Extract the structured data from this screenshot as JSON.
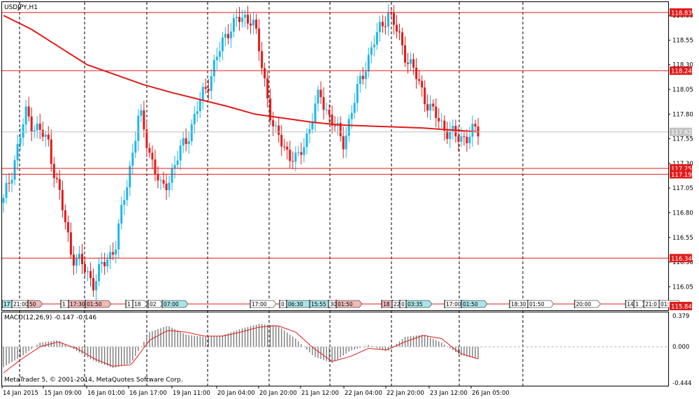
{
  "symbol_label": "USDJPY,H1",
  "indicator_label": "MACD(12,26,9) -0.147 -0.146",
  "copyright": "MetaTrader 5, © 2001-2014, MetaQuotes Software Corp.",
  "colors": {
    "bull": "#1fb6e8",
    "bear": "#e01b1b",
    "level_line": "#e01b1b",
    "ma_line": "#e01b1b",
    "macd_hist": "#7a7a7a",
    "signal": "#e01b1b",
    "grid": "#000000"
  },
  "chart_data": [
    {
      "type": "candlestick",
      "price_axis": {
        "min": 115.84,
        "max": 118.9,
        "ticks": [
          "118.80",
          "118.55",
          "118.30",
          "118.05",
          "117.80",
          "117.55",
          "117.30",
          "117.05",
          "116.80",
          "116.55",
          "116.30",
          "116.05"
        ]
      },
      "time_axis_labels": [
        "14 Jan 2015",
        "15 Jan 09:00",
        "16 Jan 01:00",
        "16 Jan 17:00",
        "19 Jan 11:00",
        "20 Jan 04:00",
        "20 Jan 20:00",
        "21 Jan 12:00",
        "22 Jan 04:00",
        "22 Jan 20:00",
        "23 Jan 12:00",
        "26 Jan 05:00"
      ],
      "levels": [
        {
          "price": 118.83,
          "label": "118.83"
        },
        {
          "price": 118.24,
          "label": "118.24"
        },
        {
          "price": 117.25,
          "label": "117.25"
        },
        {
          "price": 117.19,
          "label": "117.19"
        },
        {
          "price": 116.34,
          "label": "116.34"
        }
      ],
      "current_price": {
        "price": 117.62,
        "label": "117.62"
      },
      "bottom_label": {
        "price": 115.84,
        "label": "115.84"
      },
      "moving_average_path": [
        118.8,
        118.66,
        118.48,
        118.3,
        118.2,
        118.1,
        118.02,
        117.95,
        117.88,
        117.8,
        117.76,
        117.72,
        117.69,
        117.68,
        117.67,
        117.66,
        117.64,
        117.62
      ],
      "price_path": [
        116.9,
        117.8,
        117.5,
        116.4,
        116.1,
        116.5,
        117.8,
        117.0,
        117.5,
        118.1,
        118.7,
        118.8,
        117.6,
        117.3,
        118.0,
        117.5,
        118.3,
        118.85,
        118.3,
        117.8,
        117.55,
        117.62
      ],
      "alerts": [
        {
          "text": "17",
          "style": "teal"
        },
        {
          "text": "21:00",
          "style": "plain"
        },
        {
          "text": "50",
          "style": "red"
        },
        {
          "text": "1",
          "style": "plain"
        },
        {
          "text": "17:30",
          "style": "red"
        },
        {
          "text": "01:50",
          "style": "red"
        },
        {
          "text": "1",
          "style": "plain"
        },
        {
          "text": "18",
          "style": "plain"
        },
        {
          "text": "02",
          "style": "plain"
        },
        {
          "text": "07:00",
          "style": "teal"
        },
        {
          "text": "17:00",
          "style": "plain"
        },
        {
          "text": "0",
          "style": "plain"
        },
        {
          "text": "06:30",
          "style": "teal"
        },
        {
          "text": "15:55",
          "style": "teal"
        },
        {
          "text": "30",
          "style": "plain"
        },
        {
          "text": "01:50",
          "style": "red"
        },
        {
          "text": "18",
          "style": "red"
        },
        {
          "text": "22",
          "style": "plain"
        },
        {
          "text": "0",
          "style": "plain"
        },
        {
          "text": "03:35",
          "style": "teal"
        },
        {
          "text": "17:00",
          "style": "plain"
        },
        {
          "text": "01:50",
          "style": "teal"
        },
        {
          "text": "18:30",
          "style": "plain"
        },
        {
          "text": "01:50",
          "style": "plain"
        },
        {
          "text": "20:00",
          "style": "plain"
        },
        {
          "text": "14",
          "style": "plain"
        },
        {
          "text": "1",
          "style": "plain"
        },
        {
          "text": "21:0",
          "style": "plain"
        },
        {
          "text": "01:5",
          "style": "plain"
        }
      ]
    },
    {
      "type": "histogram",
      "name": "MACD(12,26,9)",
      "ticks": [
        "0.379",
        "0.000",
        "-0.444"
      ],
      "ylim": [
        -0.444,
        0.379
      ],
      "histogram_path": [
        -0.25,
        -0.12,
        0.05,
        0.08,
        -0.05,
        -0.18,
        -0.26,
        -0.2,
        0.18,
        0.26,
        0.15,
        0.12,
        0.14,
        0.22,
        0.28,
        0.26,
        0.1,
        -0.12,
        -0.2,
        -0.05,
        0.02,
        -0.06,
        0.12,
        0.15,
        0.05,
        -0.1,
        -0.15
      ],
      "signal_path": [
        -0.32,
        -0.15,
        0.0,
        0.06,
        -0.02,
        -0.15,
        -0.24,
        -0.22,
        0.08,
        0.2,
        0.18,
        0.13,
        0.13,
        0.18,
        0.24,
        0.26,
        0.18,
        -0.02,
        -0.18,
        -0.12,
        -0.02,
        -0.04,
        0.06,
        0.14,
        0.1,
        -0.08,
        -0.15
      ]
    }
  ]
}
